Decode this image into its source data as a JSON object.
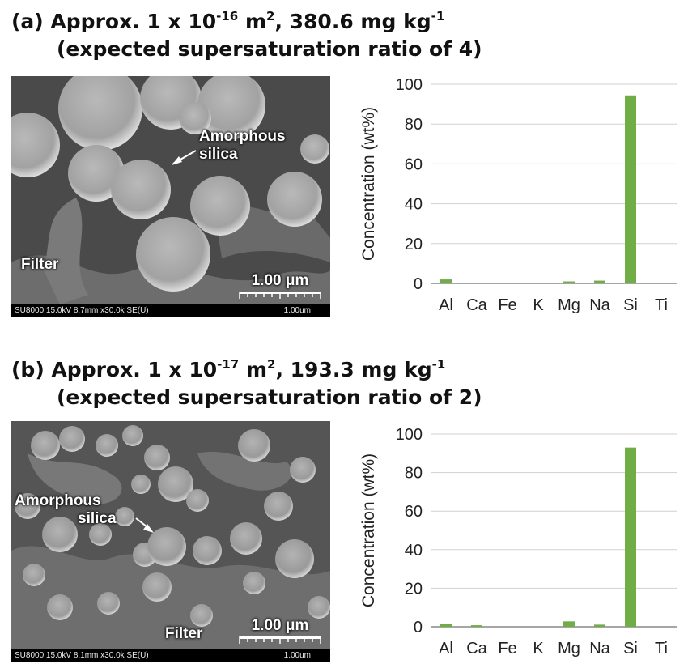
{
  "panels": [
    {
      "title_prefix": "(a) Approx. 1 x 10",
      "title_exp": "-16",
      "title_mid": " m",
      "title_exp2": "2",
      "title_value": ", 380.6 mg kg",
      "title_exp3": "-1",
      "subtitle": "(expected supersaturation ratio of 4)",
      "image": {
        "label_silica_1": "Amorphous",
        "label_silica_2": "silica",
        "label_filter": "Filter",
        "scale_bar": "1.00 μm",
        "info_meta": "SU8000 15.0kV 8.7mm x30.0k SE(U)",
        "info_scale": "1.00um"
      }
    },
    {
      "title_prefix": "(b) Approx. 1 x 10",
      "title_exp": "-17",
      "title_mid": " m",
      "title_exp2": "2",
      "title_value": ", 193.3 mg kg",
      "title_exp3": "-1",
      "subtitle": "(expected supersaturation ratio of 2)",
      "image": {
        "label_silica_1": "Amorphous",
        "label_silica_2": "silica",
        "label_filter": "Filter",
        "scale_bar": "1.00 μm",
        "info_meta": "SU8000 15.0kV 8.1mm x30.0k SE(U)",
        "info_scale": "1.00um"
      }
    }
  ],
  "chart_data": [
    {
      "type": "bar",
      "categories": [
        "Al",
        "Ca",
        "Fe",
        "K",
        "Mg",
        "Na",
        "Si",
        "Ti"
      ],
      "values": [
        2.0,
        0.0,
        0.0,
        0.3,
        1.0,
        1.4,
        94.4,
        0.0
      ],
      "ylabel": "Concentration (wt%)",
      "ylim": [
        0,
        100
      ],
      "yticks": [
        0,
        20,
        40,
        60,
        80,
        100
      ],
      "grid": true,
      "bar_color": "#70ad47"
    },
    {
      "type": "bar",
      "categories": [
        "Al",
        "Ca",
        "Fe",
        "K",
        "Mg",
        "Na",
        "Si",
        "Ti"
      ],
      "values": [
        1.5,
        0.8,
        0.0,
        0.0,
        2.8,
        1.1,
        93.0,
        0.0
      ],
      "ylabel": "Concentration (wt%)",
      "ylim": [
        0,
        100
      ],
      "yticks": [
        0,
        20,
        40,
        60,
        80,
        100
      ],
      "grid": true,
      "bar_color": "#70ad47"
    }
  ]
}
